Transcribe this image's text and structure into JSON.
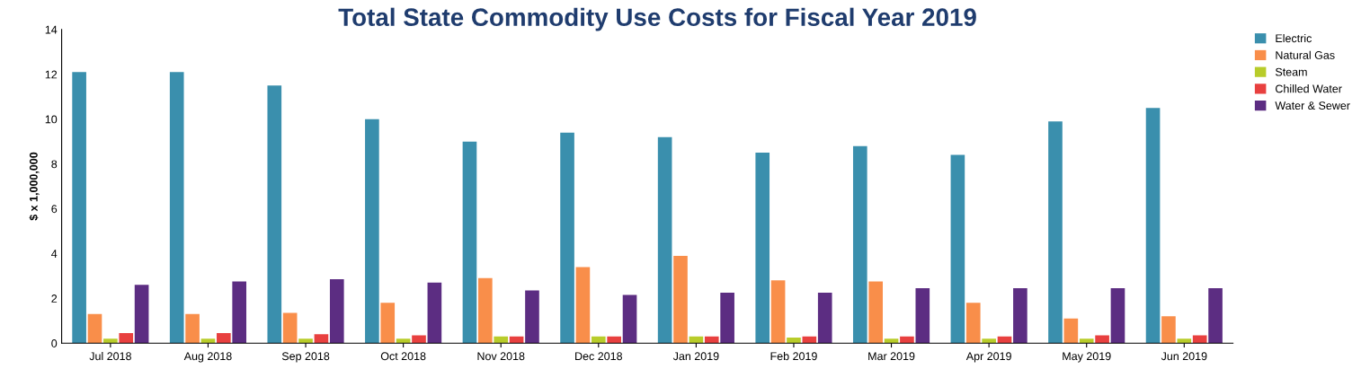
{
  "chart_data": {
    "type": "bar",
    "title": "Total State Commodity Use Costs for Fiscal Year 2019",
    "ylabel": "$ x 1,000,000",
    "categories": [
      "Jul 2018",
      "Aug 2018",
      "Sep 2018",
      "Oct 2018",
      "Nov 2018",
      "Dec 2018",
      "Jan 2019",
      "Feb 2019",
      "Mar 2019",
      "Apr 2019",
      "May 2019",
      "Jun 2019"
    ],
    "series": [
      {
        "name": "Electric",
        "color": "#3a8fad",
        "values": [
          12.1,
          12.1,
          11.5,
          10.0,
          9.0,
          9.4,
          9.2,
          8.5,
          8.8,
          8.4,
          9.9,
          10.5
        ]
      },
      {
        "name": "Natural Gas",
        "color": "#f98e4a",
        "values": [
          1.3,
          1.3,
          1.35,
          1.8,
          2.9,
          3.4,
          3.9,
          2.8,
          2.75,
          1.8,
          1.1,
          1.2
        ]
      },
      {
        "name": "Steam",
        "color": "#b8cc2a",
        "values": [
          0.2,
          0.2,
          0.2,
          0.2,
          0.3,
          0.3,
          0.3,
          0.25,
          0.2,
          0.2,
          0.2,
          0.2
        ]
      },
      {
        "name": "Chilled Water",
        "color": "#e8403f",
        "values": [
          0.45,
          0.45,
          0.4,
          0.35,
          0.3,
          0.3,
          0.3,
          0.3,
          0.3,
          0.3,
          0.35,
          0.35
        ]
      },
      {
        "name": "Water & Sewer",
        "color": "#5c2d82",
        "values": [
          2.6,
          2.75,
          2.85,
          2.7,
          2.35,
          2.15,
          2.25,
          2.25,
          2.45,
          2.45,
          2.45,
          2.45
        ]
      }
    ],
    "ylim": [
      0,
      14
    ],
    "yticks": [
      0,
      2,
      4,
      6,
      8,
      10,
      12,
      14
    ],
    "grid": false,
    "legend": "top right"
  }
}
